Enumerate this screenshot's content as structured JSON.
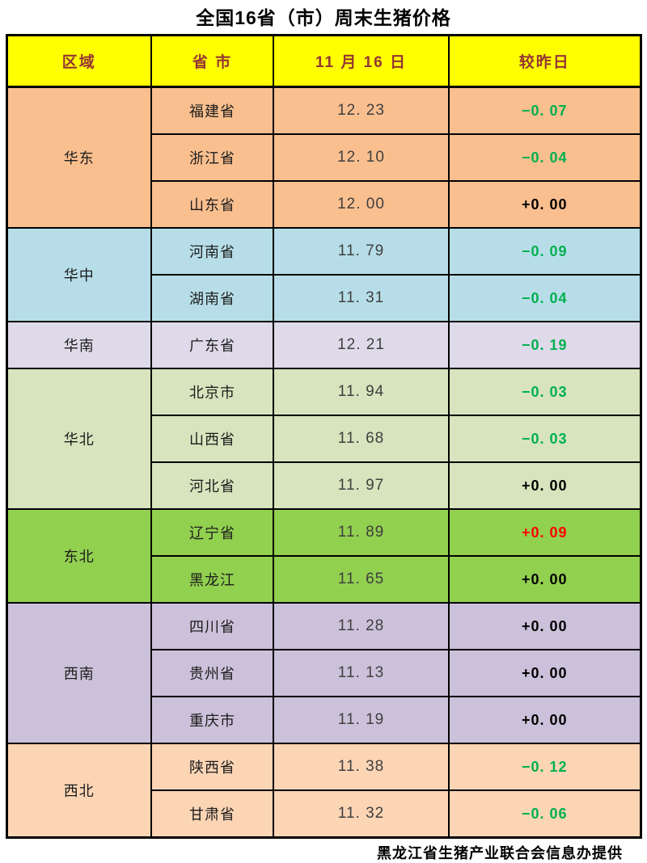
{
  "title": "全国16省（市）周末生猪价格",
  "footer": "黑龙江省生猪产业联合会信息办提供",
  "colors": {
    "header_bg": "#FFFF00",
    "header_text": "#943634",
    "up": "#FF0000",
    "down": "#00B050",
    "flat": "#000000"
  },
  "table": {
    "headers": [
      "区域",
      "省 市",
      "11 月 16 日",
      "较昨日"
    ],
    "groups": [
      {
        "region": "华东",
        "color": "#FABF8F",
        "rows": [
          {
            "province": "福建省",
            "price": "12. 23",
            "change": "−0. 07",
            "change_type": "down"
          },
          {
            "province": "浙江省",
            "price": "12. 10",
            "change": "−0. 04",
            "change_type": "down"
          },
          {
            "province": "山东省",
            "price": "12. 00",
            "change": "+0. 00",
            "change_type": "flat"
          }
        ]
      },
      {
        "region": "华中",
        "color": "#B7DEE8",
        "rows": [
          {
            "province": "河南省",
            "price": "11. 79",
            "change": "−0. 09",
            "change_type": "down"
          },
          {
            "province": "湖南省",
            "price": "11. 31",
            "change": "−0. 04",
            "change_type": "down"
          }
        ]
      },
      {
        "region": "华南",
        "color": "#DFDAEA",
        "rows": [
          {
            "province": "广东省",
            "price": "12. 21",
            "change": "−0. 19",
            "change_type": "down"
          }
        ]
      },
      {
        "region": "华北",
        "color": "#D7E4BD",
        "rows": [
          {
            "province": "北京市",
            "price": "11. 94",
            "change": "−0. 03",
            "change_type": "down"
          },
          {
            "province": "山西省",
            "price": "11. 68",
            "change": "−0. 03",
            "change_type": "down"
          },
          {
            "province": "河北省",
            "price": "11. 97",
            "change": "+0. 00",
            "change_type": "flat"
          }
        ]
      },
      {
        "region": "东北",
        "color": "#92D050",
        "rows": [
          {
            "province": "辽宁省",
            "price": "11. 89",
            "change": "+0. 09",
            "change_type": "up"
          },
          {
            "province": "黑龙江",
            "price": "11. 65",
            "change": "+0. 00",
            "change_type": "flat"
          }
        ]
      },
      {
        "region": "西南",
        "color": "#CCC1DA",
        "rows": [
          {
            "province": "四川省",
            "price": "11. 28",
            "change": "+0. 00",
            "change_type": "flat"
          },
          {
            "province": "贵州省",
            "price": "11. 13",
            "change": "+0. 00",
            "change_type": "flat"
          },
          {
            "province": "重庆市",
            "price": "11. 19",
            "change": "+0. 00",
            "change_type": "flat"
          }
        ]
      },
      {
        "region": "西北",
        "color": "#FCD5B5",
        "rows": [
          {
            "province": "陕西省",
            "price": "11. 38",
            "change": "−0. 12",
            "change_type": "down"
          },
          {
            "province": "甘肃省",
            "price": "11. 32",
            "change": "−0. 06",
            "change_type": "down"
          }
        ]
      }
    ]
  },
  "chart_data": {
    "type": "table",
    "title": "全国16省（市）周末生猪价格",
    "columns": [
      "区域",
      "省市",
      "11月16日",
      "较昨日"
    ],
    "rows": [
      [
        "华东",
        "福建省",
        12.23,
        -0.07
      ],
      [
        "华东",
        "浙江省",
        12.1,
        -0.04
      ],
      [
        "华东",
        "山东省",
        12.0,
        0.0
      ],
      [
        "华中",
        "河南省",
        11.79,
        -0.09
      ],
      [
        "华中",
        "湖南省",
        11.31,
        -0.04
      ],
      [
        "华南",
        "广东省",
        12.21,
        -0.19
      ],
      [
        "华北",
        "北京市",
        11.94,
        -0.03
      ],
      [
        "华北",
        "山西省",
        11.68,
        -0.03
      ],
      [
        "华北",
        "河北省",
        11.97,
        0.0
      ],
      [
        "东北",
        "辽宁省",
        11.89,
        0.09
      ],
      [
        "东北",
        "黑龙江",
        11.65,
        0.0
      ],
      [
        "西南",
        "四川省",
        11.28,
        0.0
      ],
      [
        "西南",
        "贵州省",
        11.13,
        0.0
      ],
      [
        "西南",
        "重庆市",
        11.19,
        0.0
      ],
      [
        "西北",
        "陕西省",
        11.38,
        -0.12
      ],
      [
        "西北",
        "甘肃省",
        11.32,
        -0.06
      ]
    ],
    "footnote": "黑龙江省生猪产业联合会信息办提供"
  }
}
